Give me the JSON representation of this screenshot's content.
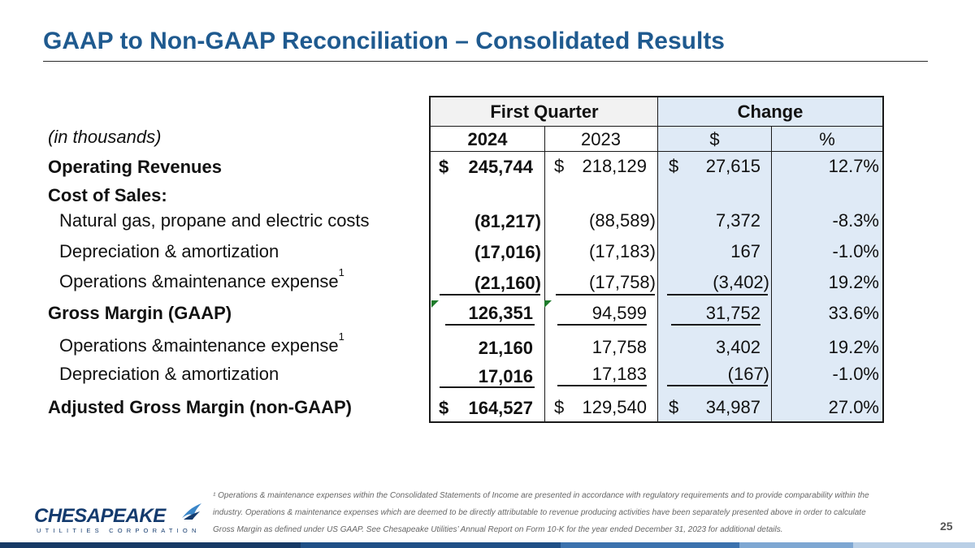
{
  "title": "GAAP to Non-GAAP Reconciliation – Consolidated Results",
  "table": {
    "header": {
      "first_quarter": "First Quarter",
      "change": "Change"
    },
    "subheader": {
      "y2024": "2024",
      "y2023": "2023",
      "dollar": "$",
      "percent": "%"
    },
    "units_note": "(in thousands)",
    "dollar_sign": "$",
    "rows": [
      {
        "label": "Operating Revenues",
        "v2024": "245,744",
        "v2023": "218,129",
        "change_d": "27,615",
        "change_p": "12.7%"
      },
      {
        "label": "Cost of Sales:"
      },
      {
        "label": "Natural gas, propane and electric costs",
        "v2024": "(81,217)",
        "v2023": "(88,589)",
        "change_d": "7,372",
        "change_p": "-8.3%"
      },
      {
        "label": "Depreciation & amortization",
        "v2024": "(17,016)",
        "v2023": "(17,183)",
        "change_d": "167",
        "change_p": "-1.0%"
      },
      {
        "label": "Operations &maintenance expense",
        "sup": "1",
        "v2024": "(21,160)",
        "v2023": "(17,758)",
        "change_d": "(3,402)",
        "change_p": "19.2%"
      },
      {
        "label": "Gross Margin (GAAP)",
        "v2024": "126,351",
        "v2023": "94,599",
        "change_d": "31,752",
        "change_p": "33.6%"
      },
      {
        "label": "Operations &maintenance expense",
        "sup": "1",
        "v2024": "21,160",
        "v2023": "17,758",
        "change_d": "3,402",
        "change_p": "19.2%"
      },
      {
        "label": "Depreciation & amortization",
        "v2024": "17,016",
        "v2023": "17,183",
        "change_d": "(167)",
        "change_p": "-1.0%"
      },
      {
        "label": "Adjusted Gross Margin (non-GAAP)",
        "v2024": "164,527",
        "v2023": "129,540",
        "change_d": "34,987",
        "change_p": "27.0%"
      }
    ]
  },
  "footnote": "¹ Operations & maintenance expenses within the Consolidated Statements of Income are presented in accordance with regulatory requirements and to provide comparability within the industry. Operations & maintenance expenses which are deemed to be directly attributable to revenue producing activities have been separately presented above in order to calculate Gross Margin as defined under US GAAP. See Chesapeake Utilities’ Annual Report on Form 10-K for the year ended December 31, 2023 for additional details.",
  "logo": {
    "name": "CHESAPEAKE",
    "tagline": "UTILITIES CORPORATION"
  },
  "page_number": "25",
  "colors": {
    "title": "#1f5a8f",
    "change_shade": "#dfeaf6",
    "logo": "#143b6e"
  }
}
